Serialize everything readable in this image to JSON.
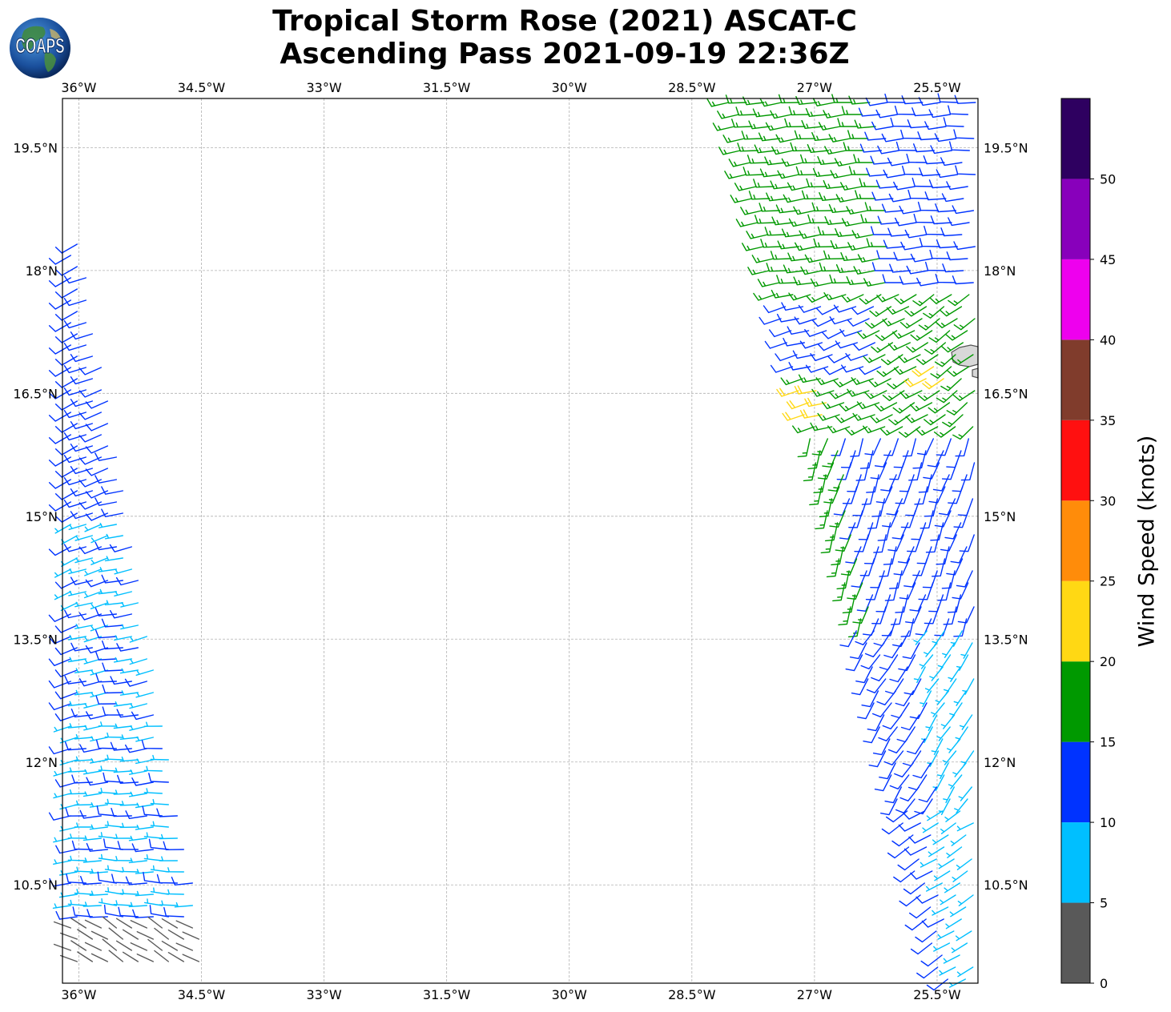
{
  "title_line1": "Tropical Storm Rose (2021) ASCAT-C",
  "title_line2": "Ascending Pass 2021-09-19 22:36Z",
  "logo_text": "COAPS",
  "map": {
    "lon_range": [
      -36.2,
      -25.0
    ],
    "lat_range": [
      9.3,
      20.1
    ],
    "gridlines": true,
    "lon_ticks": [
      {
        "value": -36.0,
        "label": "36°W"
      },
      {
        "value": -34.5,
        "label": "34.5°W"
      },
      {
        "value": -33.0,
        "label": "33°W"
      },
      {
        "value": -31.5,
        "label": "31.5°W"
      },
      {
        "value": -30.0,
        "label": "30°W"
      },
      {
        "value": -28.5,
        "label": "28.5°W"
      },
      {
        "value": -27.0,
        "label": "27°W"
      },
      {
        "value": -25.5,
        "label": "25.5°W"
      }
    ],
    "lat_ticks": [
      {
        "value": 19.5,
        "label": "19.5°N"
      },
      {
        "value": 18.0,
        "label": "18°N"
      },
      {
        "value": 16.5,
        "label": "16.5°N"
      },
      {
        "value": 15.0,
        "label": "15°N"
      },
      {
        "value": 13.5,
        "label": "13.5°N"
      },
      {
        "value": 12.0,
        "label": "12°N"
      },
      {
        "value": 10.5,
        "label": "10.5°N"
      }
    ],
    "land_features": [
      "cape-verde-islands"
    ]
  },
  "colorbar": {
    "label": "Wind Speed (knots)",
    "range": [
      0,
      55
    ],
    "bins": [
      {
        "from": 0,
        "to": 5,
        "color": "#595959"
      },
      {
        "from": 5,
        "to": 10,
        "color": "#00bfff"
      },
      {
        "from": 10,
        "to": 15,
        "color": "#0033ff"
      },
      {
        "from": 15,
        "to": 20,
        "color": "#009900"
      },
      {
        "from": 20,
        "to": 25,
        "color": "#ffd814"
      },
      {
        "from": 25,
        "to": 30,
        "color": "#ff8c0a"
      },
      {
        "from": 30,
        "to": 35,
        "color": "#ff1010"
      },
      {
        "from": 35,
        "to": 40,
        "color": "#803c2c"
      },
      {
        "from": 40,
        "to": 45,
        "color": "#ee00ee"
      },
      {
        "from": 45,
        "to": 50,
        "color": "#8800bb"
      },
      {
        "from": 50,
        "to": 55,
        "color": "#2e0060"
      }
    ],
    "tick_labels": [
      "0",
      "5",
      "10",
      "15",
      "20",
      "25",
      "30",
      "35",
      "40",
      "45",
      "50"
    ]
  },
  "wind_swaths": [
    {
      "name": "west-swath",
      "lon_min_at_lat_min": -36.2,
      "lon_max_at_lat_min": -34.4,
      "lon_min_at_lat_max": -36.2,
      "lon_max_at_lat_max": -36.0,
      "lat_min": 9.4,
      "lat_max": 18.5
    },
    {
      "name": "east-swath",
      "lon_min_at_lat_min": -25.5,
      "lon_max_at_lat_min": -25.0,
      "lon_min_at_lat_max": -28.2,
      "lon_max_at_lat_max": -25.0,
      "lat_min": 9.4,
      "lat_max": 20.1
    }
  ]
}
